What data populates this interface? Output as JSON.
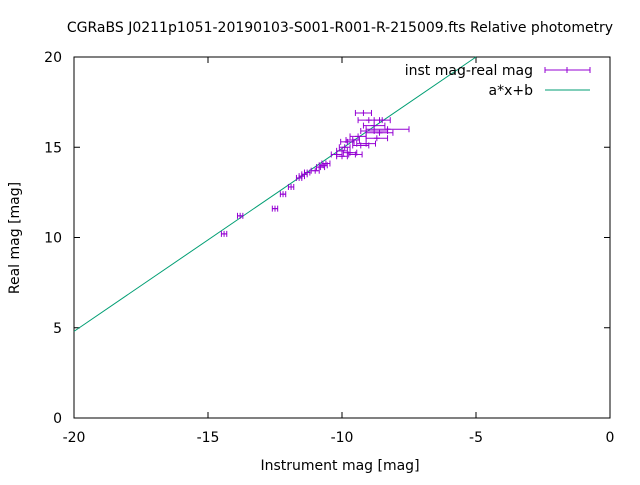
{
  "chart_data": {
    "type": "scatter",
    "title": "CGRaBS J0211p1051-20190103-S001-R001-R-215009.fts Relative photometry",
    "xlabel": "Instrument mag [mag]",
    "ylabel": "Real mag [mag]",
    "xlim": [
      -20,
      0
    ],
    "ylim": [
      0,
      20
    ],
    "x_ticks": [
      -20,
      -15,
      -10,
      -5,
      0
    ],
    "y_ticks": [
      0,
      5,
      10,
      15,
      20
    ],
    "x_tick_labels": [
      "-20",
      "-15",
      "-10",
      "-5",
      "0"
    ],
    "y_tick_labels": [
      "0",
      "5",
      "10",
      "15",
      "20"
    ],
    "grid": false,
    "legend_position": "top-right",
    "colors": {
      "points": "#9400d3",
      "fit": "#009e73"
    },
    "series": [
      {
        "name": "inst mag-real mag",
        "kind": "errorbars",
        "points": [
          {
            "x": -14.4,
            "y": 10.2,
            "xerr": 0.1
          },
          {
            "x": -13.8,
            "y": 11.2,
            "xerr": 0.1
          },
          {
            "x": -12.5,
            "y": 11.6,
            "xerr": 0.1
          },
          {
            "x": -12.2,
            "y": 12.4,
            "xerr": 0.1
          },
          {
            "x": -11.9,
            "y": 12.8,
            "xerr": 0.1
          },
          {
            "x": -11.6,
            "y": 13.3,
            "xerr": 0.1
          },
          {
            "x": -11.5,
            "y": 13.4,
            "xerr": 0.1
          },
          {
            "x": -11.4,
            "y": 13.5,
            "xerr": 0.1
          },
          {
            "x": -11.3,
            "y": 13.6,
            "xerr": 0.1
          },
          {
            "x": -11.0,
            "y": 13.7,
            "xerr": 0.15
          },
          {
            "x": -10.8,
            "y": 13.9,
            "xerr": 0.15
          },
          {
            "x": -10.7,
            "y": 14.0,
            "xerr": 0.15
          },
          {
            "x": -10.6,
            "y": 14.1,
            "xerr": 0.15
          },
          {
            "x": -10.2,
            "y": 14.6,
            "xerr": 0.2
          },
          {
            "x": -10.0,
            "y": 14.5,
            "xerr": 0.2
          },
          {
            "x": -10.0,
            "y": 14.8,
            "xerr": 0.2
          },
          {
            "x": -9.9,
            "y": 15.0,
            "xerr": 0.2
          },
          {
            "x": -9.8,
            "y": 15.3,
            "xerr": 0.25
          },
          {
            "x": -9.7,
            "y": 14.7,
            "xerr": 0.25
          },
          {
            "x": -9.6,
            "y": 15.4,
            "xerr": 0.25
          },
          {
            "x": -9.5,
            "y": 14.6,
            "xerr": 0.25
          },
          {
            "x": -9.4,
            "y": 15.6,
            "xerr": 0.3
          },
          {
            "x": -9.3,
            "y": 15.1,
            "xerr": 0.3
          },
          {
            "x": -9.2,
            "y": 16.9,
            "xerr": 0.3
          },
          {
            "x": -9.1,
            "y": 15.2,
            "xerr": 0.35
          },
          {
            "x": -9.0,
            "y": 16.5,
            "xerr": 0.4
          },
          {
            "x": -8.8,
            "y": 15.9,
            "xerr": 0.5
          },
          {
            "x": -8.8,
            "y": 16.2,
            "xerr": 0.4
          },
          {
            "x": -8.7,
            "y": 15.5,
            "xerr": 0.4
          },
          {
            "x": -8.6,
            "y": 15.8,
            "xerr": 0.5
          },
          {
            "x": -8.5,
            "y": 16.5,
            "xerr": 0.3
          },
          {
            "x": -8.3,
            "y": 16.0,
            "xerr": 0.8
          }
        ]
      },
      {
        "name": "a*x+b",
        "kind": "line",
        "x": [
          -20,
          -5
        ],
        "y": [
          4.8,
          20.0
        ]
      }
    ]
  }
}
